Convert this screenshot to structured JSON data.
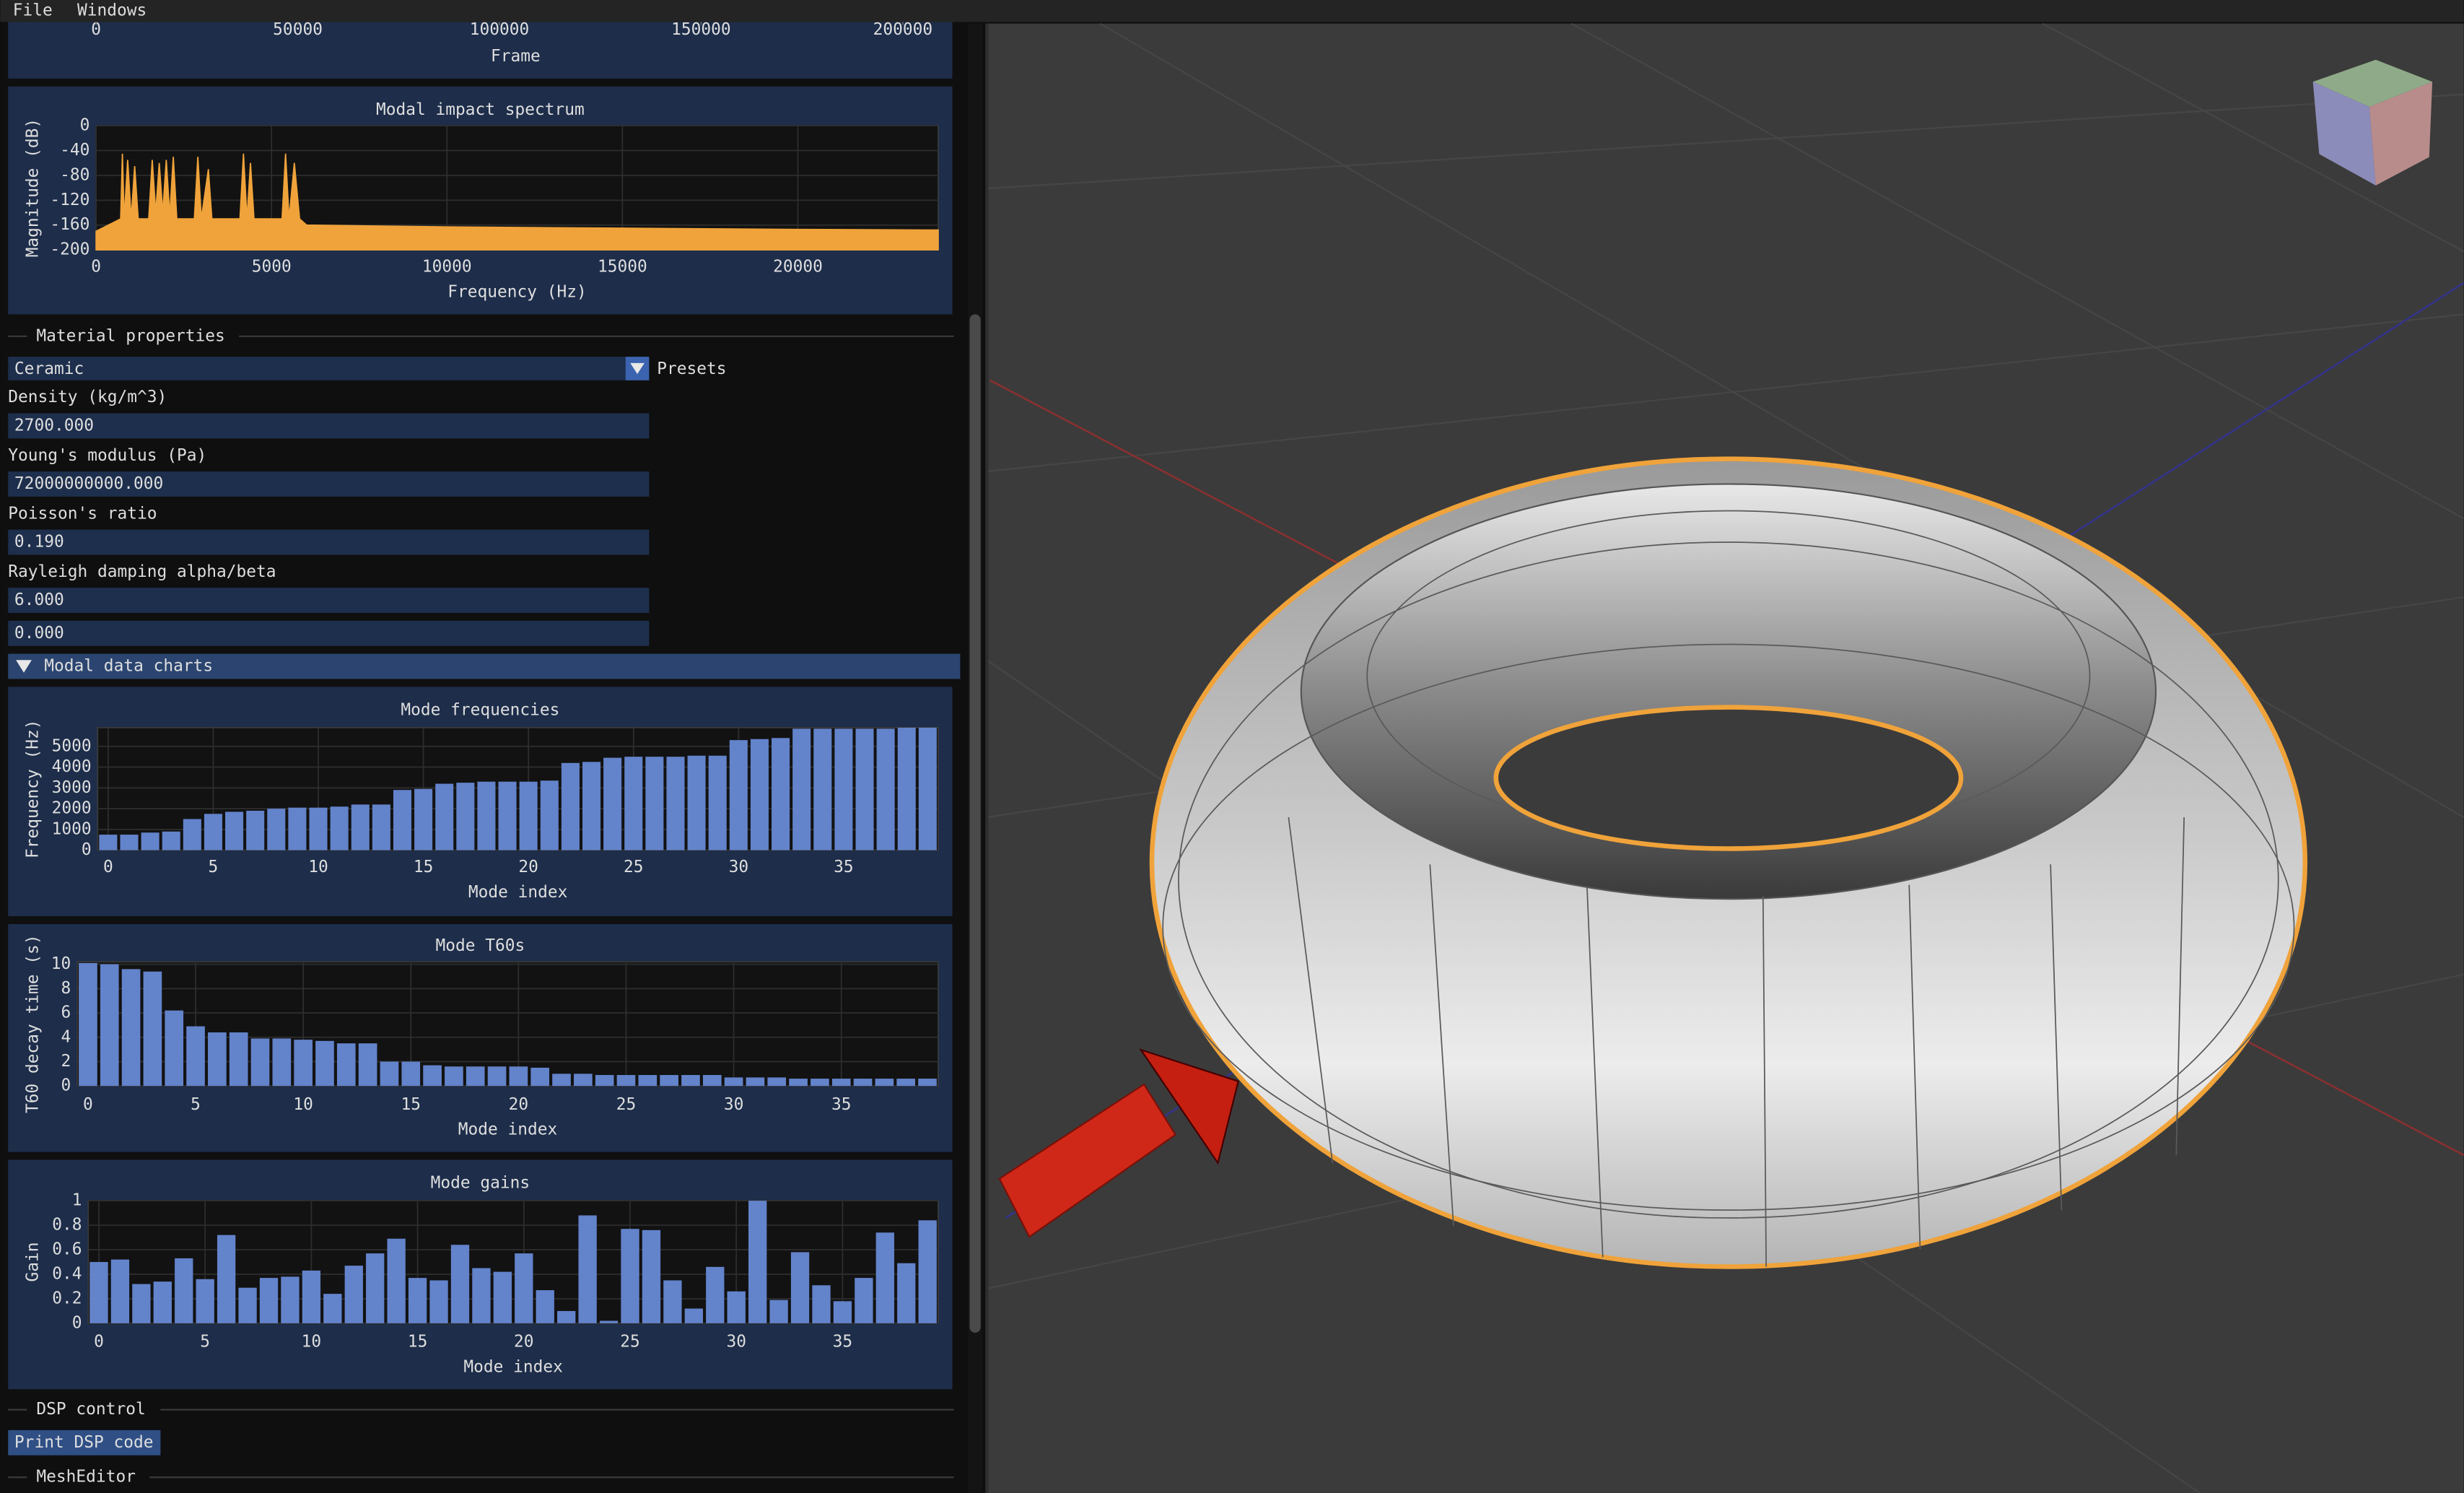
{
  "menu": [
    "File",
    "Windows"
  ],
  "chart_data": [
    {
      "type": "line",
      "xlabel": "Frame",
      "xlim": [
        0,
        208000
      ],
      "xticks": [
        0,
        50000,
        100000,
        150000,
        200000
      ]
    },
    {
      "type": "area",
      "title": "Modal impact spectrum",
      "xlabel": "Frequency (Hz)",
      "ylabel": "Magnitude (dB)",
      "color": "#f0a33a",
      "x": [
        0,
        700,
        750,
        800,
        900,
        1000,
        1100,
        1200,
        1500,
        1600,
        1700,
        1800,
        1900,
        2000,
        2100,
        2200,
        2300,
        2800,
        2900,
        3000,
        3200,
        3300,
        4100,
        4200,
        4300,
        4400,
        4500,
        5300,
        5400,
        5500,
        5650,
        5800,
        6000,
        10000,
        15000,
        20000,
        24000
      ],
      "values": [
        -170,
        -150,
        -45,
        -150,
        -55,
        -150,
        -65,
        -150,
        -150,
        -55,
        -140,
        -60,
        -140,
        -55,
        -145,
        -50,
        -150,
        -150,
        -50,
        -150,
        -70,
        -150,
        -150,
        -45,
        -150,
        -60,
        -150,
        -150,
        -45,
        -150,
        -60,
        -150,
        -160,
        -163,
        -165,
        -167,
        -168
      ],
      "xlim": [
        0,
        24000
      ],
      "xticks": [
        0,
        5000,
        10000,
        15000,
        20000
      ],
      "ylim": [
        -200,
        0
      ],
      "yticks": [
        0,
        -40,
        -80,
        -120,
        -160,
        -200
      ],
      "grid": true
    },
    {
      "type": "bar",
      "title": "Mode frequencies",
      "xlabel": "Mode index",
      "ylabel": "Frequency (Hz)",
      "color": "#6383cb",
      "x": [
        0,
        1,
        2,
        3,
        4,
        5,
        6,
        7,
        8,
        9,
        10,
        11,
        12,
        13,
        14,
        15,
        16,
        17,
        18,
        19,
        20,
        21,
        22,
        23,
        24,
        25,
        26,
        27,
        28,
        29,
        30,
        31,
        32,
        33,
        34,
        35,
        36,
        37,
        38,
        39
      ],
      "values": [
        750,
        750,
        850,
        900,
        1500,
        1750,
        1850,
        1900,
        2000,
        2050,
        2050,
        2100,
        2200,
        2200,
        2900,
        2950,
        3200,
        3250,
        3300,
        3300,
        3300,
        3350,
        4200,
        4250,
        4450,
        4500,
        4500,
        4500,
        4550,
        4550,
        5300,
        5350,
        5400,
        5850,
        5850,
        5850,
        5850,
        5850,
        5900,
        5900
      ],
      "xlim": [
        -0.5,
        39.5
      ],
      "xticks": [
        0,
        5,
        10,
        15,
        20,
        25,
        30,
        35
      ],
      "ylim": [
        0,
        5900
      ],
      "yticks": [
        0,
        1000,
        2000,
        3000,
        4000,
        5000
      ],
      "grid": true
    },
    {
      "type": "bar",
      "title": "Mode T60s",
      "xlabel": "Mode index",
      "ylabel": "T60 decay time (s)",
      "color": "#6383cb",
      "x": [
        0,
        1,
        2,
        3,
        4,
        5,
        6,
        7,
        8,
        9,
        10,
        11,
        12,
        13,
        14,
        15,
        16,
        17,
        18,
        19,
        20,
        21,
        22,
        23,
        24,
        25,
        26,
        27,
        28,
        29,
        30,
        31,
        32,
        33,
        34,
        35,
        36,
        37,
        38,
        39
      ],
      "values": [
        10.1,
        10.0,
        9.6,
        9.4,
        6.2,
        4.9,
        4.4,
        4.4,
        3.9,
        3.9,
        3.8,
        3.7,
        3.5,
        3.5,
        2.0,
        2.0,
        1.7,
        1.6,
        1.6,
        1.6,
        1.6,
        1.5,
        1.0,
        1.0,
        0.9,
        0.9,
        0.9,
        0.9,
        0.9,
        0.9,
        0.7,
        0.7,
        0.7,
        0.6,
        0.6,
        0.6,
        0.6,
        0.6,
        0.6,
        0.6
      ],
      "xlim": [
        -0.5,
        39.5
      ],
      "xticks": [
        0,
        5,
        10,
        15,
        20,
        25,
        30,
        35
      ],
      "ylim": [
        0,
        10.2
      ],
      "yticks": [
        0,
        2,
        4,
        6,
        8,
        10
      ],
      "grid": true
    },
    {
      "type": "bar",
      "title": "Mode gains",
      "xlabel": "Mode index",
      "ylabel": "Gain",
      "color": "#6383cb",
      "x": [
        0,
        1,
        2,
        3,
        4,
        5,
        6,
        7,
        8,
        9,
        10,
        11,
        12,
        13,
        14,
        15,
        16,
        17,
        18,
        19,
        20,
        21,
        22,
        23,
        24,
        25,
        26,
        27,
        28,
        29,
        30,
        31,
        32,
        33,
        34,
        35,
        36,
        37,
        38,
        39
      ],
      "values": [
        0.5,
        0.52,
        0.32,
        0.34,
        0.53,
        0.36,
        0.72,
        0.29,
        0.37,
        0.38,
        0.43,
        0.24,
        0.47,
        0.57,
        0.69,
        0.37,
        0.35,
        0.64,
        0.45,
        0.42,
        0.57,
        0.27,
        0.1,
        0.88,
        0.02,
        0.77,
        0.76,
        0.35,
        0.12,
        0.46,
        0.26,
        1.0,
        0.19,
        0.58,
        0.31,
        0.18,
        0.37,
        0.74,
        0.49,
        0.84
      ],
      "xlim": [
        -0.5,
        39.5
      ],
      "xticks": [
        0,
        5,
        10,
        15,
        20,
        25,
        30,
        35
      ],
      "ylim": [
        0,
        1
      ],
      "yticks": [
        0,
        0.2,
        0.4,
        0.6,
        0.8,
        1
      ],
      "grid": true
    }
  ],
  "material": {
    "header": "Material properties",
    "preset": "Ceramic",
    "presets_label": "Presets",
    "fields": [
      {
        "label": "Density (kg/m^3)",
        "values": [
          "2700.000"
        ]
      },
      {
        "label": "Young's modulus (Pa)",
        "values": [
          "72000000000.000"
        ]
      },
      {
        "label": "Poisson's ratio",
        "values": [
          "0.190"
        ]
      },
      {
        "label": "Rayleigh damping alpha/beta",
        "values": [
          "6.000",
          "0.000"
        ]
      }
    ]
  },
  "modal_header": "Modal data charts",
  "dsp": {
    "header": "DSP control",
    "button": "Print DSP code"
  },
  "mesh_editor": "MeshEditor"
}
